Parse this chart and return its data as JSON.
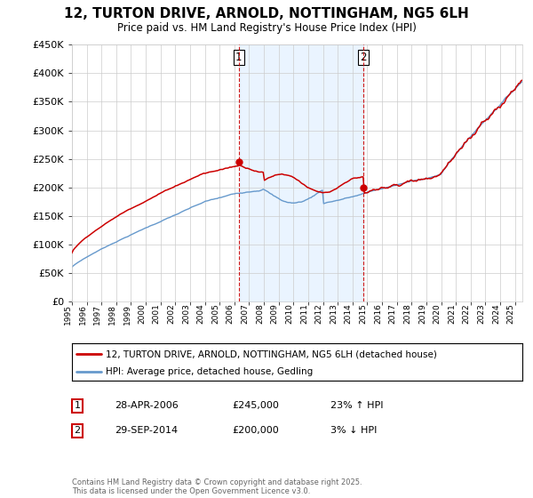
{
  "title": "12, TURTON DRIVE, ARNOLD, NOTTINGHAM, NG5 6LH",
  "subtitle": "Price paid vs. HM Land Registry's House Price Index (HPI)",
  "background_color": "#ffffff",
  "plot_bg_color": "#ffffff",
  "x_start_year": 1995,
  "x_end_year": 2025,
  "y_min": 0,
  "y_max": 450000,
  "y_ticks": [
    0,
    50000,
    100000,
    150000,
    200000,
    250000,
    300000,
    350000,
    400000,
    450000
  ],
  "sale1_x": 2006.29,
  "sale1_price": 245000,
  "sale1_label": "1",
  "sale1_date": "28-APR-2006",
  "sale1_hpi": "23% ↑ HPI",
  "sale2_x": 2014.75,
  "sale2_price": 200000,
  "sale2_label": "2",
  "sale2_date": "29-SEP-2014",
  "sale2_hpi": "3% ↓ HPI",
  "legend_line1": "12, TURTON DRIVE, ARNOLD, NOTTINGHAM, NG5 6LH (detached house)",
  "legend_line2": "HPI: Average price, detached house, Gedling",
  "footer": "Contains HM Land Registry data © Crown copyright and database right 2025.\nThis data is licensed under the Open Government Licence v3.0.",
  "red_color": "#cc0000",
  "blue_color": "#6699cc",
  "fill_color": "#ddeeff",
  "grid_color": "#cccccc"
}
